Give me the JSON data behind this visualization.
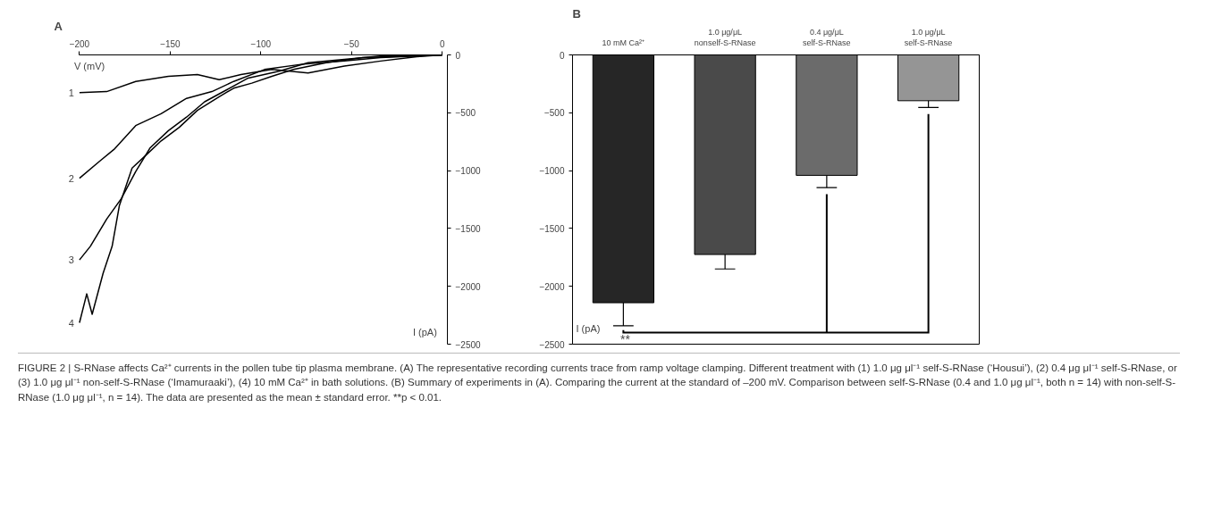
{
  "chart_data": [
    {
      "type": "line",
      "title": "A",
      "xlabel": "V (mV)",
      "ylabel": "I (pA)",
      "xlim": [
        -200,
        0
      ],
      "ylim": [
        -2500,
        0
      ],
      "xticks": [
        -200,
        -150,
        -100,
        -50,
        0
      ],
      "yticks": [
        0,
        -500,
        -1000,
        -1500,
        -2000,
        -2500
      ],
      "grid": false,
      "legend": false,
      "marker": "none",
      "line_style": "solid",
      "series": [
        {
          "name": "1",
          "color": "#000000",
          "x": [
            -200,
            -185,
            -169,
            -151,
            -135,
            -123,
            -111,
            -94,
            -74,
            -54,
            -34,
            -14,
            0
          ],
          "values": [
            -326,
            -317,
            -229,
            -185,
            -170,
            -214,
            -170,
            -126,
            -156,
            -97,
            -53,
            -15,
            0
          ]
        },
        {
          "name": "2",
          "color": "#000000",
          "x": [
            -200,
            -189,
            -181,
            -169,
            -155,
            -141,
            -127,
            -115,
            -98,
            -78,
            -54,
            -34,
            0
          ],
          "values": [
            -1066,
            -920,
            -817,
            -611,
            -508,
            -376,
            -317,
            -229,
            -126,
            -82,
            -53,
            -24,
            0
          ]
        },
        {
          "name": "3",
          "color": "#000000",
          "x": [
            -200,
            -194,
            -185,
            -177,
            -169,
            -161,
            -151,
            -141,
            -131,
            -119,
            -107,
            -90,
            -74,
            -54,
            -34,
            0
          ],
          "values": [
            -1772,
            -1654,
            -1419,
            -1243,
            -1008,
            -802,
            -655,
            -538,
            -405,
            -303,
            -200,
            -141,
            -68,
            -38,
            -9,
            0
          ]
        },
        {
          "name": "4",
          "color": "#000000",
          "x": [
            -200,
            -196,
            -193,
            -187,
            -182,
            -178,
            -171,
            -163,
            -155,
            -145,
            -135,
            -123,
            -115,
            -105,
            -94,
            -82,
            -64,
            -44,
            0
          ],
          "values": [
            -2315,
            -2065,
            -2242,
            -1889,
            -1654,
            -1302,
            -978,
            -861,
            -743,
            -626,
            -479,
            -361,
            -288,
            -244,
            -185,
            -126,
            -68,
            -24,
            0
          ]
        }
      ],
      "annotations": [
        "FIGURE 2 | S-RNase affects Ca²⁺ currents in the pollen tube tip plasma membrane. (A) The representative recording currents trace from ramp voltage clamping. Different treatment with (1) 1.0 μg μl⁻¹ self-S-RNase (‘Housui’), (2) 0.4 μg μl⁻¹ self-S-RNase, or (3) 1.0 μg μl⁻¹ non-self-S-RNase (‘Imamuraaki’), (4) 10 mM Ca²⁺ in bath solutions. (B) Summary of experiments in (A). Comparing the current at the standard of –200 mV. Comparison between self-S-RNase (0.4 and 1.0 μg μl⁻¹, both n = 14) with non-self-S-RNase (1.0 μg μl⁻¹, n = 14). The data are presented as the mean ± standard error. **p < 0.01."
      ]
    },
    {
      "type": "bar",
      "title": "B",
      "ylabel": "I (pA)",
      "categories": [
        "10 mM Ca²⁺",
        "1.0 μg/μL\nnonself-S-RNase",
        "0.4 μg/μL\nself-S-RNase",
        "1.0 μg/μL\nself-S-RNase"
      ],
      "values": [
        -2142,
        -1725,
        -1041,
        -396
      ],
      "colors": [
        "#262626",
        "#4a4a4a",
        "#6b6b6b",
        "#959595"
      ],
      "errors": [
        [
          -2341,
          -2142
        ],
        [
          -1850,
          -1725
        ],
        [
          -1147,
          -1041
        ],
        [
          -455,
          -396
        ]
      ],
      "ylim": [
        -2500,
        0
      ],
      "yticks": [
        0,
        -500,
        -1000,
        -1500,
        -2000,
        -2500
      ],
      "grid": false,
      "legend": false,
      "annotations": [
        "**"
      ]
    }
  ]
}
